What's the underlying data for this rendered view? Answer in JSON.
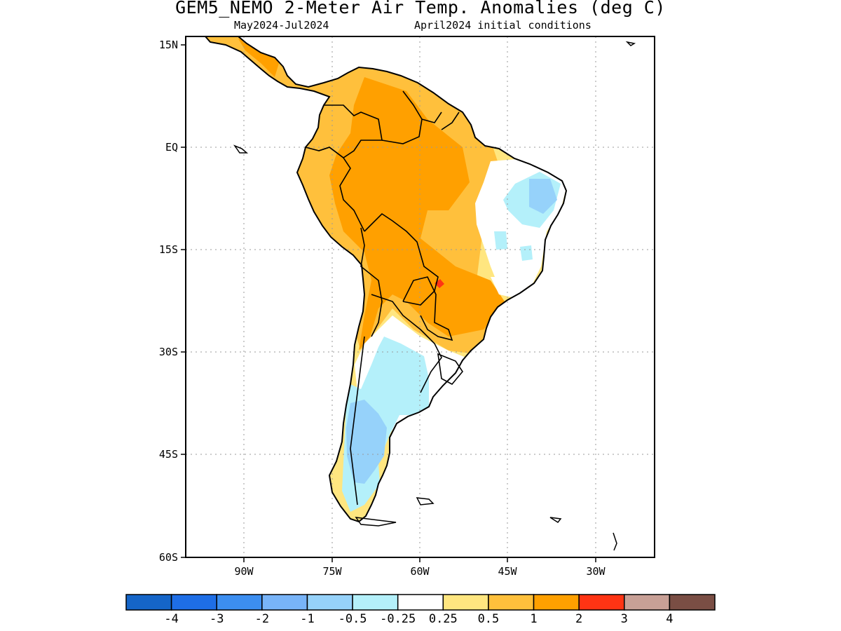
{
  "title": "GEM5_NEMO 2-Meter Air Temp. Anomalies (deg C)",
  "subtitle_left": "May2024-Jul2024",
  "subtitle_right": "April2024 initial conditions",
  "lat_ticks": [
    "15N",
    "EQ",
    "15S",
    "30S",
    "45S",
    "60S"
  ],
  "lon_ticks": [
    "90W",
    "75W",
    "60W",
    "45W",
    "30W"
  ],
  "colorbar": {
    "colors": [
      "#1565c8",
      "#1e6ee6",
      "#3c8ef0",
      "#78b4f8",
      "#96d2fa",
      "#b4f0fa",
      "#ffffff",
      "#ffe680",
      "#ffc03c",
      "#ffa000",
      "#ff3414",
      "#c8a096",
      "#7a4e44"
    ],
    "labels": [
      "-4",
      "-3",
      "-2",
      "-1",
      "-0.5",
      "-0.25",
      "0.25",
      "0.5",
      "1",
      "2",
      "3",
      "4"
    ]
  },
  "legend_colors": {
    "warm_1": "#ffa000",
    "warm_05": "#ffc03c",
    "warm_025": "#ffe680",
    "cool_025": "#b4f0fa",
    "cool_05": "#96d2fa",
    "hot_2": "#ff3414"
  }
}
